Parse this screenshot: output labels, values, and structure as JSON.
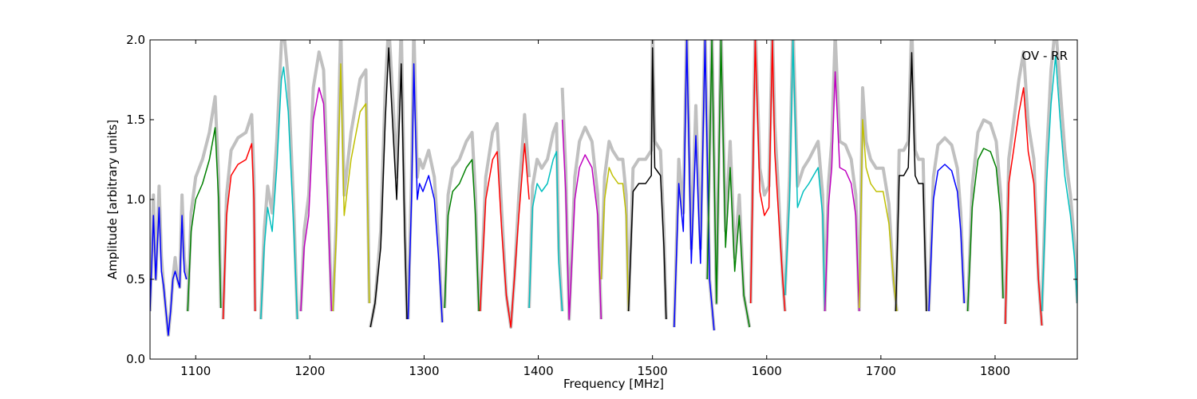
{
  "chart_data": {
    "type": "line",
    "title": "",
    "annotation": "OV - RR",
    "xlabel": "Frequency [MHz]",
    "ylabel": "Amplitude [arbitrary units]",
    "xlim": [
      1060,
      1872
    ],
    "ylim": [
      0.0,
      2.0
    ],
    "x_ticks": [
      1100,
      1200,
      1300,
      1400,
      1500,
      1600,
      1700,
      1800
    ],
    "x_tick_labels": [
      "1100",
      "1200",
      "1300",
      "1400",
      "1500",
      "1600",
      "1700",
      "1800"
    ],
    "y_ticks": [
      0.0,
      0.5,
      1.0,
      1.5,
      2.0
    ],
    "y_tick_labels": [
      "0.0",
      "0.5",
      "1.0",
      "1.5",
      "2.0"
    ],
    "grid": false,
    "legend": "none",
    "background_series_color": "#c0c0c0",
    "series": [
      {
        "color": "#0000ff",
        "x": [
          1060,
          1063,
          1065,
          1068,
          1070,
          1072,
          1074,
          1076,
          1078,
          1080,
          1082,
          1084,
          1086,
          1088,
          1090,
          1092
        ],
        "y": [
          0.3,
          0.9,
          0.5,
          0.95,
          0.55,
          0.45,
          0.3,
          0.15,
          0.3,
          0.5,
          0.55,
          0.5,
          0.45,
          0.9,
          0.55,
          0.5
        ]
      },
      {
        "color": "#008000",
        "x": [
          1093,
          1096,
          1100,
          1106,
          1112,
          1117,
          1120,
          1122
        ],
        "y": [
          0.3,
          0.8,
          1.0,
          1.1,
          1.25,
          1.45,
          1.0,
          0.32
        ]
      },
      {
        "color": "#ff0000",
        "x": [
          1124,
          1127,
          1131,
          1137,
          1144,
          1149,
          1151,
          1152
        ],
        "y": [
          0.25,
          0.9,
          1.15,
          1.22,
          1.25,
          1.35,
          1.0,
          0.3
        ]
      },
      {
        "color": "#00bfbf",
        "x": [
          1157,
          1160,
          1163,
          1167,
          1171,
          1175,
          1177,
          1181,
          1186,
          1189
        ],
        "y": [
          0.25,
          0.7,
          0.95,
          0.8,
          1.2,
          1.75,
          1.83,
          1.55,
          0.8,
          0.25
        ]
      },
      {
        "color": "#bf00bf",
        "x": [
          1192,
          1195,
          1199,
          1203,
          1208,
          1212,
          1216,
          1219
        ],
        "y": [
          0.3,
          0.7,
          0.9,
          1.5,
          1.7,
          1.6,
          0.9,
          0.3
        ]
      },
      {
        "color": "#bfbf00",
        "x": [
          1220,
          1223,
          1227,
          1230,
          1236,
          1244,
          1249,
          1252
        ],
        "y": [
          0.3,
          0.75,
          1.85,
          0.9,
          1.25,
          1.55,
          1.6,
          0.35
        ]
      },
      {
        "color": "#000000",
        "x": [
          1253,
          1257,
          1262,
          1266,
          1269,
          1273,
          1276,
          1280,
          1283,
          1285
        ],
        "y": [
          0.2,
          0.35,
          0.7,
          1.5,
          1.95,
          1.4,
          1.0,
          1.85,
          0.8,
          0.25
        ]
      },
      {
        "color": "#0000ff",
        "x": [
          1286,
          1289,
          1291,
          1294,
          1296,
          1299,
          1304,
          1309,
          1313,
          1316
        ],
        "y": [
          0.25,
          1.0,
          1.85,
          1.0,
          1.1,
          1.05,
          1.15,
          1.0,
          0.6,
          0.23
        ]
      },
      {
        "color": "#008000",
        "x": [
          1318,
          1321,
          1325,
          1331,
          1337,
          1342,
          1345,
          1348
        ],
        "y": [
          0.32,
          0.9,
          1.05,
          1.1,
          1.2,
          1.25,
          0.9,
          0.3
        ]
      },
      {
        "color": "#ff0000",
        "x": [
          1349,
          1354,
          1360,
          1364,
          1368,
          1372,
          1376,
          1379,
          1383,
          1388,
          1392
        ],
        "y": [
          0.3,
          1.0,
          1.25,
          1.3,
          0.8,
          0.4,
          0.2,
          0.5,
          0.9,
          1.35,
          1.0
        ]
      },
      {
        "color": "#00bfbf",
        "x": [
          1392,
          1395,
          1399,
          1403,
          1408,
          1413,
          1416,
          1418,
          1421
        ],
        "y": [
          0.32,
          0.95,
          1.1,
          1.05,
          1.1,
          1.25,
          1.3,
          0.6,
          0.3
        ]
      },
      {
        "color": "#bf00bf",
        "x": [
          1421,
          1424,
          1427,
          1432,
          1436,
          1441,
          1447,
          1452,
          1455
        ],
        "y": [
          1.5,
          1.05,
          0.25,
          1.0,
          1.2,
          1.28,
          1.2,
          0.9,
          0.25
        ]
      },
      {
        "color": "#bfbf00",
        "x": [
          1455,
          1458,
          1462,
          1465,
          1470,
          1474,
          1477,
          1479
        ],
        "y": [
          0.5,
          1.0,
          1.2,
          1.15,
          1.1,
          1.1,
          0.9,
          0.3
        ]
      },
      {
        "color": "#000000",
        "x": [
          1479,
          1483,
          1488,
          1494,
          1499,
          1500,
          1502,
          1507,
          1510,
          1512
        ],
        "y": [
          0.3,
          1.05,
          1.1,
          1.1,
          1.15,
          1.95,
          1.2,
          1.15,
          0.7,
          0.25
        ]
      },
      {
        "color": "#0000ff",
        "x": [
          1519,
          1523,
          1527,
          1530,
          1534,
          1538,
          1542,
          1546,
          1550,
          1554
        ],
        "y": [
          0.2,
          1.1,
          0.8,
          2.0,
          0.6,
          1.4,
          0.6,
          2.0,
          0.5,
          0.18
        ]
      },
      {
        "color": "#008000",
        "x": [
          1548,
          1552,
          1556,
          1560,
          1564,
          1568,
          1572,
          1576,
          1580,
          1585
        ],
        "y": [
          0.5,
          2.0,
          0.35,
          2.0,
          0.7,
          1.2,
          0.55,
          0.9,
          0.4,
          0.2
        ]
      },
      {
        "color": "#ff0000",
        "x": [
          1586,
          1590,
          1594,
          1598,
          1602,
          1605,
          1607,
          1610,
          1614,
          1616
        ],
        "y": [
          0.35,
          2.0,
          1.05,
          0.9,
          0.95,
          2.0,
          1.3,
          0.95,
          0.5,
          0.3
        ]
      },
      {
        "color": "#00bfbf",
        "x": [
          1616,
          1620,
          1623,
          1627,
          1632,
          1637,
          1641,
          1645,
          1649,
          1651
        ],
        "y": [
          0.4,
          1.0,
          2.0,
          0.95,
          1.05,
          1.1,
          1.15,
          1.2,
          0.9,
          0.3
        ]
      },
      {
        "color": "#bf00bf",
        "x": [
          1651,
          1654,
          1657,
          1660,
          1664,
          1669,
          1674,
          1678,
          1681
        ],
        "y": [
          0.3,
          0.95,
          1.2,
          1.8,
          1.2,
          1.18,
          1.1,
          0.9,
          0.3
        ]
      },
      {
        "color": "#bfbf00",
        "x": [
          1681,
          1684,
          1687,
          1691,
          1696,
          1702,
          1707,
          1711,
          1714
        ],
        "y": [
          0.32,
          1.5,
          1.2,
          1.1,
          1.05,
          1.05,
          0.85,
          0.5,
          0.3
        ]
      },
      {
        "color": "#000000",
        "x": [
          1713,
          1716,
          1720,
          1724,
          1727,
          1730,
          1733,
          1737,
          1740
        ],
        "y": [
          0.3,
          1.15,
          1.15,
          1.2,
          1.92,
          1.15,
          1.1,
          1.1,
          0.3
        ]
      },
      {
        "color": "#0000ff",
        "x": [
          1742,
          1746,
          1750,
          1756,
          1762,
          1767,
          1770,
          1773
        ],
        "y": [
          0.3,
          1.0,
          1.18,
          1.22,
          1.18,
          1.05,
          0.8,
          0.35
        ]
      },
      {
        "color": "#008000",
        "x": [
          1776,
          1780,
          1785,
          1790,
          1796,
          1801,
          1805,
          1807
        ],
        "y": [
          0.3,
          0.95,
          1.25,
          1.32,
          1.3,
          1.2,
          0.9,
          0.38
        ]
      },
      {
        "color": "#ff0000",
        "x": [
          1809,
          1812,
          1816,
          1821,
          1825,
          1829,
          1834,
          1838,
          1841
        ],
        "y": [
          0.22,
          1.1,
          1.3,
          1.55,
          1.7,
          1.3,
          1.1,
          0.5,
          0.21
        ]
      },
      {
        "color": "#00bfbf",
        "x": [
          1841,
          1845,
          1849,
          1853,
          1857,
          1861,
          1866,
          1870,
          1872
        ],
        "y": [
          0.3,
          1.1,
          1.6,
          1.9,
          1.5,
          1.15,
          0.9,
          0.6,
          0.35
        ]
      }
    ]
  }
}
